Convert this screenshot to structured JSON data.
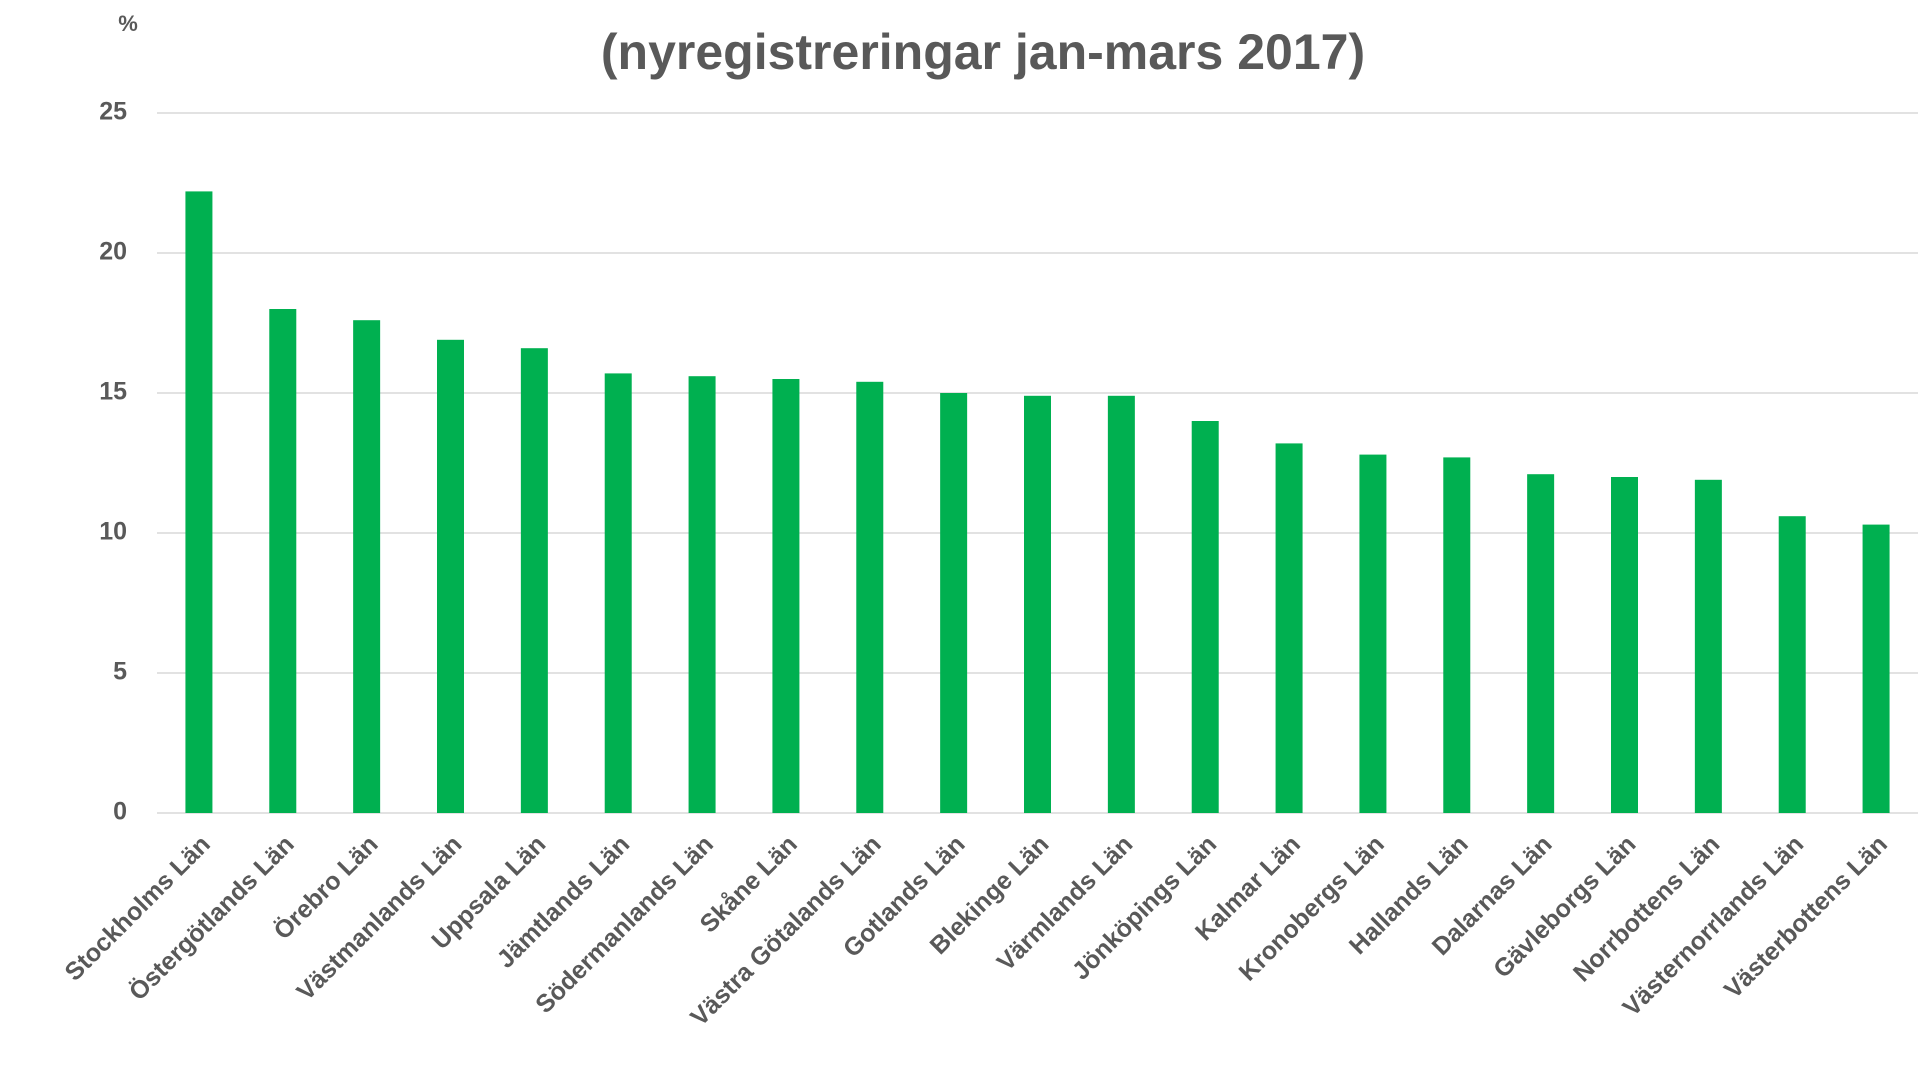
{
  "chart_data": {
    "type": "bar",
    "subtitle": "(nyregistreringar jan-mars 2017)",
    "y_label": "%",
    "categories": [
      "Stockholms Län",
      "Östergötlands Län",
      "Örebro Län",
      "Västmanlands Län",
      "Uppsala Län",
      "Jämtlands Län",
      "Södermanlands Län",
      "Skåne Län",
      "Västra Götalands Län",
      "Gotlands Län",
      "Blekinge Län",
      "Värmlands Län",
      "Jönköpings Län",
      "Kalmar Län",
      "Kronobergs Län",
      "Hallands Län",
      "Dalarnas Län",
      "Gävleborgs Län",
      "Norrbottens Län",
      "Västernorrlands Län",
      "Västerbottens Län"
    ],
    "values": [
      22.2,
      18.0,
      17.6,
      16.9,
      16.6,
      15.7,
      15.6,
      15.5,
      15.4,
      15.0,
      14.9,
      14.9,
      14.0,
      13.2,
      12.8,
      12.7,
      12.1,
      12.0,
      11.9,
      10.6,
      10.3
    ],
    "color": "#00b050",
    "ylim": [
      0,
      25
    ],
    "yticks": [
      0,
      5,
      10,
      15,
      20,
      25
    ],
    "grid": true
  }
}
